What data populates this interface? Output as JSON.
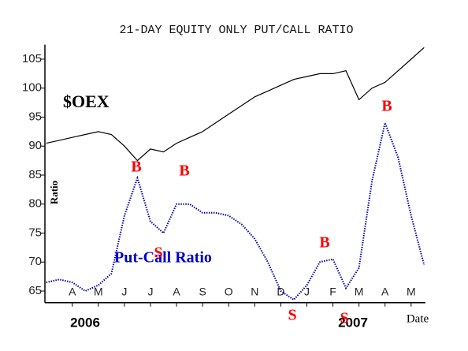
{
  "chart_data": {
    "type": "line",
    "title": "21-DAY EQUITY ONLY PUT/CALL RATIO",
    "ylabel": "Ratio",
    "xlabel": "Date",
    "year_labels": [
      "2006",
      "2007"
    ],
    "x": [
      -1,
      -0.5,
      0,
      0.5,
      1,
      1.5,
      2,
      2.5,
      3,
      3.5,
      4,
      4.5,
      5,
      5.5,
      6,
      6.5,
      7,
      7.5,
      8,
      8.5,
      9,
      9.5,
      10,
      10.5,
      11,
      11.5,
      12,
      12.5,
      13,
      13.5
    ],
    "series": [
      {
        "name": "$OEX",
        "color": "#000000",
        "dashed": false,
        "values": [
          90.5,
          91,
          91.5,
          92,
          92.5,
          92,
          90,
          87.5,
          89.5,
          89,
          90.5,
          91.5,
          92.5,
          94,
          95.5,
          97,
          98.5,
          99.5,
          100.5,
          101.5,
          102,
          102.5,
          102.5,
          103,
          98,
          100,
          101,
          103,
          105,
          107
        ]
      },
      {
        "name": "Put-Call Ratio",
        "color": "#0000aa",
        "dashed": true,
        "values": [
          66.5,
          67,
          66.5,
          65,
          66,
          68,
          78,
          84.5,
          77,
          75,
          80,
          80,
          78.5,
          78.5,
          78,
          76.5,
          74,
          70,
          65,
          63.5,
          66,
          70,
          70.5,
          65.5,
          69,
          84,
          94,
          88,
          78,
          69.5
        ]
      }
    ],
    "signals": [
      "B",
      "S",
      "B",
      "S",
      "B",
      "S",
      "B"
    ],
    "xlim": [
      -1.05,
      13.55
    ],
    "xticks": [
      {
        "value": 0,
        "label": "A"
      },
      {
        "value": 1,
        "label": "M"
      },
      {
        "value": 2,
        "label": "J"
      },
      {
        "value": 3,
        "label": "J"
      },
      {
        "value": 4,
        "label": "A"
      },
      {
        "value": 5,
        "label": "S"
      },
      {
        "value": 6,
        "label": "O"
      },
      {
        "value": 7,
        "label": "N"
      },
      {
        "value": 8,
        "label": "D"
      },
      {
        "value": 9,
        "label": "J"
      },
      {
        "value": 10,
        "label": "F"
      },
      {
        "value": 11,
        "label": "M"
      },
      {
        "value": 12,
        "label": "A"
      },
      {
        "value": 13,
        "label": "M"
      }
    ],
    "ylim": [
      63,
      107.5
    ],
    "yticks": [
      65,
      70,
      75,
      80,
      85,
      90,
      95,
      100,
      105
    ],
    "grid": false
  }
}
